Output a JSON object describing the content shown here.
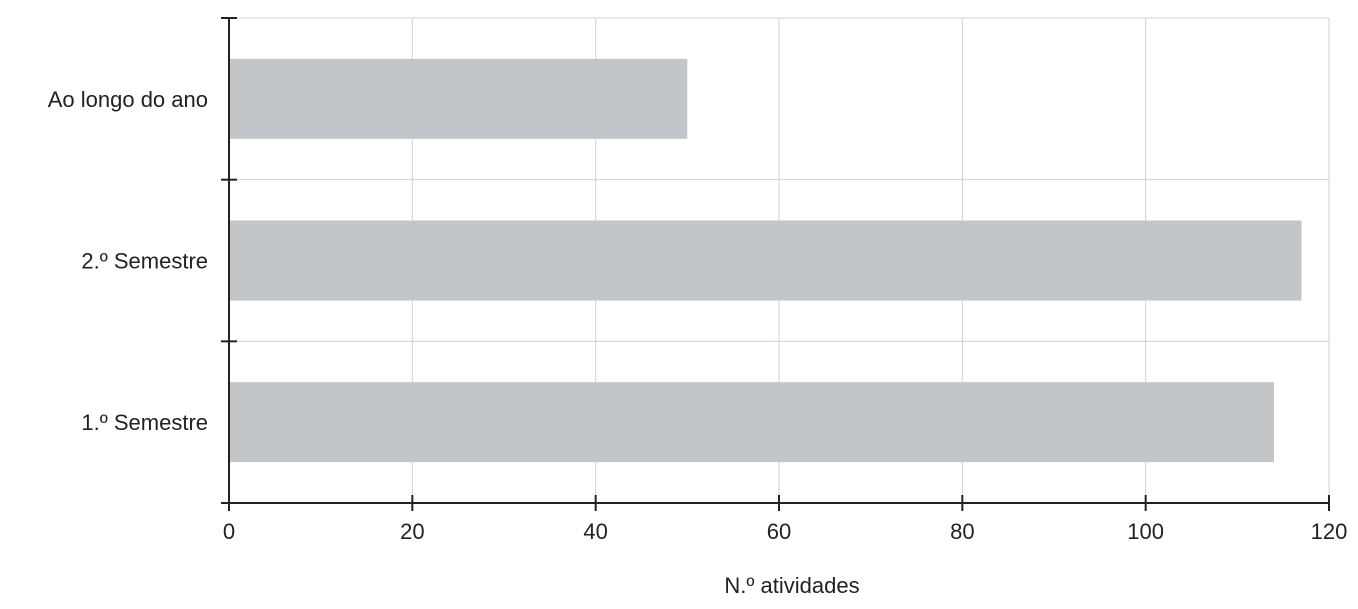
{
  "chart_data": {
    "type": "bar",
    "orientation": "horizontal",
    "categories": [
      "Ao longo do ano",
      "2.º Semestre",
      "1.º Semestre"
    ],
    "values": [
      50,
      117,
      114
    ],
    "xlabel": "N.º atividades",
    "ylabel": "",
    "xlim": [
      0,
      120
    ],
    "xticks": [
      0,
      20,
      40,
      60,
      80,
      100,
      120
    ],
    "xtick_labels": [
      "0",
      "20",
      "40",
      "60",
      "80",
      "100",
      "120"
    ],
    "grid": true,
    "colors": {
      "bar": "#c3c6c8",
      "grid": "#c8d2e2",
      "axis": "#222222"
    }
  }
}
